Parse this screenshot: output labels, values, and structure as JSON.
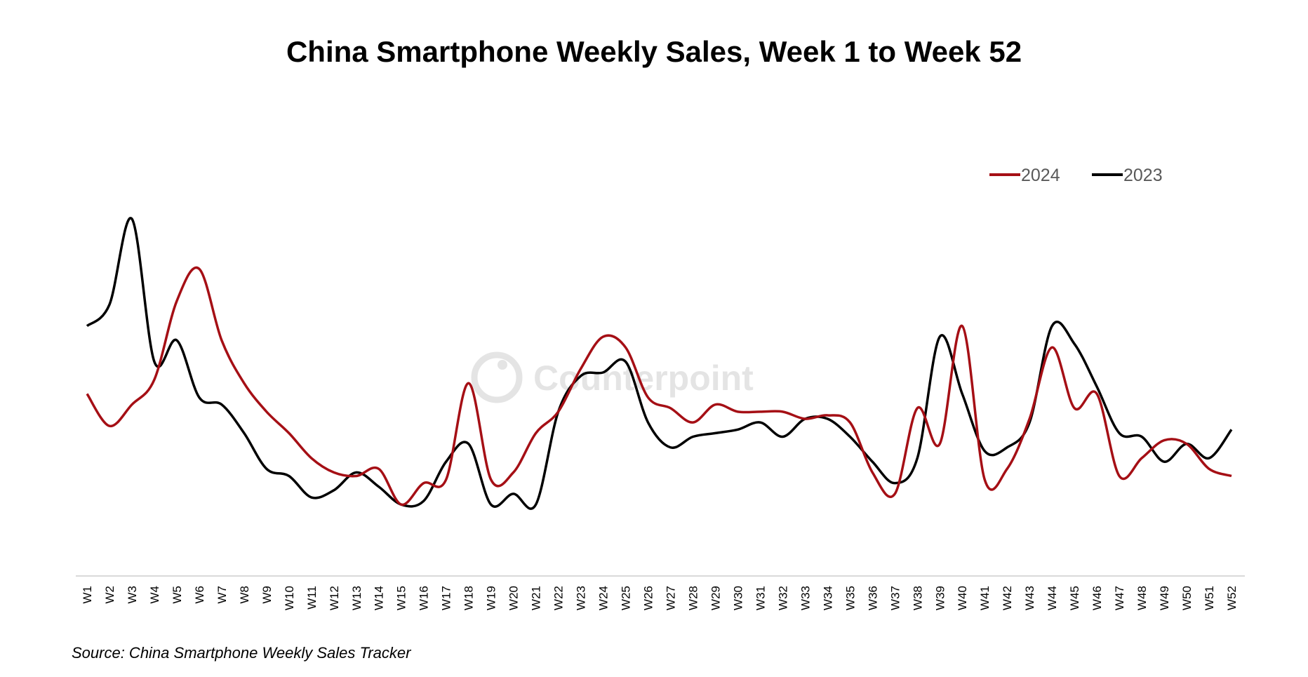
{
  "chart_data": {
    "type": "line",
    "title": "China Smartphone Weekly Sales, Week 1 to Week 52",
    "source": "Source: China Smartphone Weekly Sales Tracker",
    "watermark": "Counterpoint",
    "xlabel": "",
    "ylabel": "",
    "y_axis_shown": false,
    "ylim": [
      0,
      100
    ],
    "grid": false,
    "legend_position": "top-right",
    "smoothed": true,
    "categories": [
      "W1",
      "W2",
      "W3",
      "W4",
      "W5",
      "W6",
      "W7",
      "W8",
      "W9",
      "W10",
      "W11",
      "W12",
      "W13",
      "W14",
      "W15",
      "W16",
      "W17",
      "W18",
      "W19",
      "W20",
      "W21",
      "W22",
      "W23",
      "W24",
      "W25",
      "W26",
      "W27",
      "W28",
      "W29",
      "W30",
      "W31",
      "W32",
      "W33",
      "W34",
      "W35",
      "W36",
      "W37",
      "W38",
      "W39",
      "W40",
      "W41",
      "W42",
      "W43",
      "W44",
      "W45",
      "W46",
      "W47",
      "W48",
      "W49",
      "W50",
      "W51",
      "W52"
    ],
    "series": [
      {
        "name": "2024",
        "color": "#A50F15",
        "values": [
          51,
          42,
          48,
          55,
          77,
          86,
          66,
          54,
          46,
          40,
          33,
          29,
          28,
          30,
          20,
          26,
          27,
          54,
          27,
          29,
          40,
          46,
          58,
          67,
          64,
          50,
          47,
          43,
          48,
          46,
          46,
          46,
          44,
          45,
          43,
          29,
          23,
          47,
          37,
          70,
          27,
          30,
          44,
          64,
          47,
          51,
          28,
          33,
          38,
          37,
          30,
          28
        ]
      },
      {
        "name": "2023",
        "color": "#000000",
        "values": [
          70,
          76,
          100,
          60,
          66,
          50,
          48,
          40,
          30,
          28,
          22,
          24,
          29,
          25,
          20,
          21,
          32,
          37,
          20,
          23,
          20,
          46,
          56,
          57,
          60,
          43,
          36,
          39,
          40,
          41,
          43,
          39,
          44,
          44,
          39,
          32,
          26,
          33,
          67,
          51,
          35,
          36,
          43,
          70,
          65,
          53,
          40,
          39,
          32,
          37,
          33,
          41
        ]
      }
    ]
  }
}
